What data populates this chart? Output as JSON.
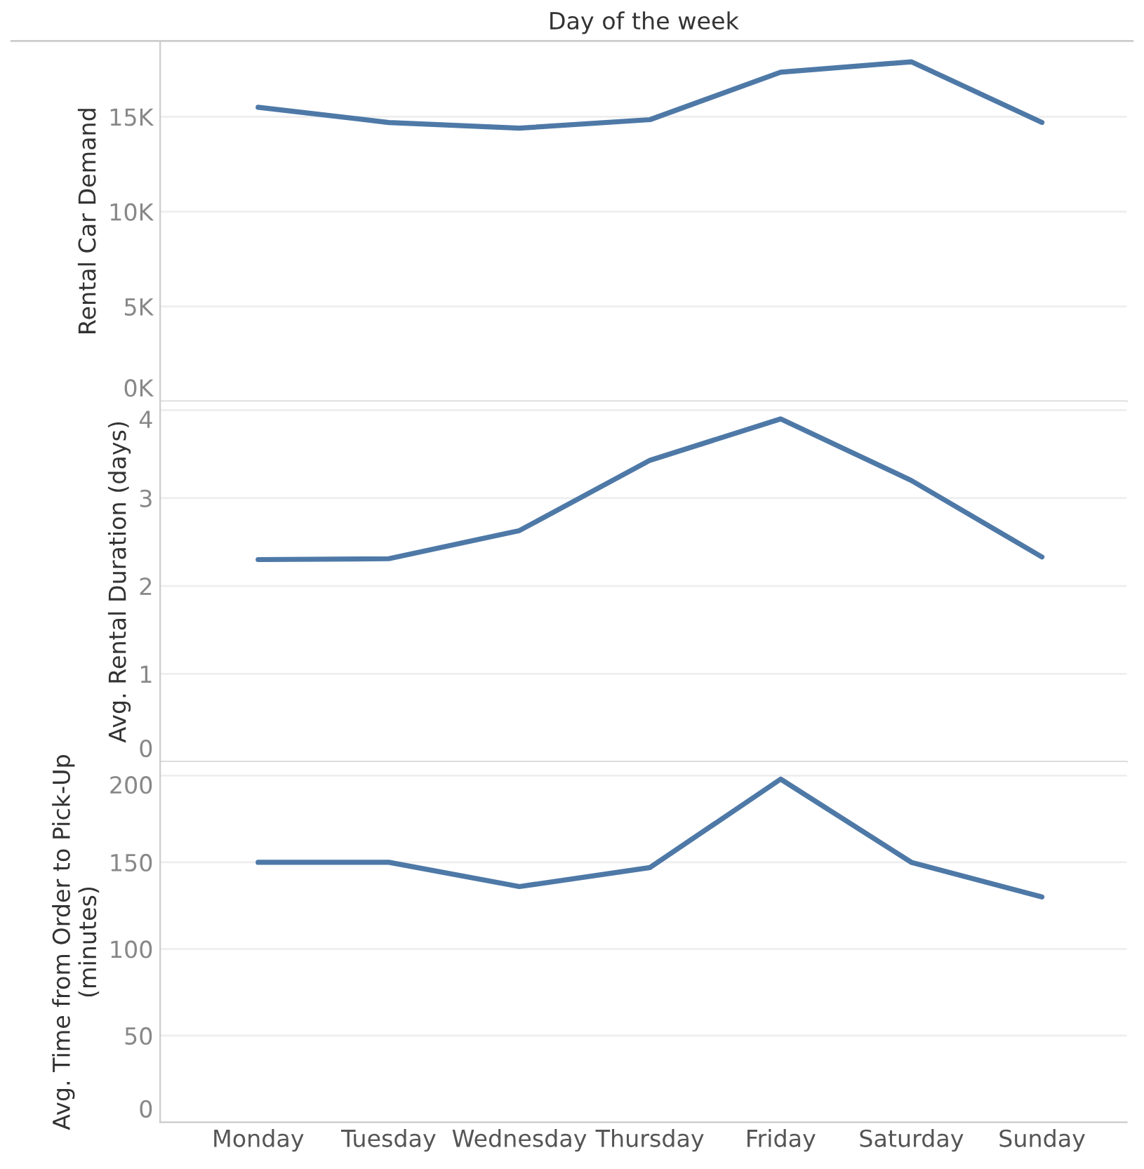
{
  "chart_data": [
    {
      "type": "line",
      "title": "Day of the week",
      "ylabel": "Rental Car Demand",
      "tick_labels": "y",
      "series": [
        {
          "color": "#4e79a7",
          "values": [
            15500,
            14700,
            14400,
            14850,
            17350,
            17900,
            14700
          ]
        }
      ],
      "ylim": [
        0,
        19000
      ],
      "yticks": [
        {
          "value": 0,
          "label": "0K"
        },
        {
          "value": 5000,
          "label": "5K"
        },
        {
          "value": 10000,
          "label": "10K"
        },
        {
          "value": 15000,
          "label": "15K"
        }
      ],
      "grid": "y"
    },
    {
      "type": "line",
      "ylabel": "Avg. Rental Duration (days)",
      "tick_labels": "y",
      "series": [
        {
          "color": "#4e79a7",
          "values": [
            2.3,
            2.31,
            2.63,
            3.43,
            3.9,
            3.2,
            2.33
          ]
        }
      ],
      "ylim": [
        0,
        4.1
      ],
      "yticks": [
        0,
        1,
        2,
        3,
        4
      ],
      "grid": "y"
    },
    {
      "type": "line",
      "ylabel": "Avg. Time from Order to Pick-Up\n(minutes)",
      "categories": [
        "Monday",
        "Tuesday",
        "Wednesday",
        "Thursday",
        "Friday",
        "Saturday",
        "Sunday"
      ],
      "series": [
        {
          "color": "#4e79a7",
          "values": [
            150,
            150,
            136,
            147,
            198,
            150,
            130
          ]
        }
      ],
      "ylim": [
        0,
        208
      ],
      "yticks": [
        0,
        50,
        100,
        150,
        200
      ],
      "grid": "y"
    }
  ]
}
